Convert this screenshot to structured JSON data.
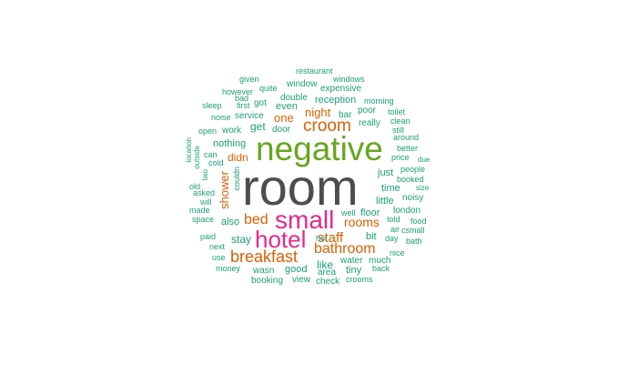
{
  "colors": {
    "teal": "#1b9e77",
    "orange": "#d95f02",
    "magenta": "#e7298a",
    "green": "#66a61e",
    "grey": "#4d4d4d"
  },
  "words": [
    {
      "text": "room",
      "color": "grey"
    },
    {
      "text": "negative",
      "color": "green"
    },
    {
      "text": "small",
      "color": "magenta"
    },
    {
      "text": "hotel",
      "color": "magenta"
    },
    {
      "text": "croom",
      "color": "orange"
    },
    {
      "text": "breakfast",
      "color": "orange"
    },
    {
      "text": "bathroom",
      "color": "orange"
    },
    {
      "text": "bed",
      "color": "orange"
    },
    {
      "text": "staff",
      "color": "orange"
    },
    {
      "text": "rooms",
      "color": "orange"
    },
    {
      "text": "shower",
      "color": "orange"
    },
    {
      "text": "night",
      "color": "orange"
    },
    {
      "text": "one",
      "color": "orange"
    },
    {
      "text": "didn",
      "color": "orange"
    },
    {
      "text": "restaurant",
      "color": "teal"
    },
    {
      "text": "given",
      "color": "teal"
    },
    {
      "text": "windows",
      "color": "teal"
    },
    {
      "text": "window",
      "color": "teal"
    },
    {
      "text": "however",
      "color": "teal"
    },
    {
      "text": "quite",
      "color": "teal"
    },
    {
      "text": "expensive",
      "color": "teal"
    },
    {
      "text": "bad",
      "color": "teal"
    },
    {
      "text": "double",
      "color": "teal"
    },
    {
      "text": "sleep",
      "color": "teal"
    },
    {
      "text": "first",
      "color": "teal"
    },
    {
      "text": "got",
      "color": "teal"
    },
    {
      "text": "reception",
      "color": "teal"
    },
    {
      "text": "morning",
      "color": "teal"
    },
    {
      "text": "even",
      "color": "teal"
    },
    {
      "text": "poor",
      "color": "teal"
    },
    {
      "text": "toilet",
      "color": "teal"
    },
    {
      "text": "noise",
      "color": "teal"
    },
    {
      "text": "service",
      "color": "teal"
    },
    {
      "text": "bar",
      "color": "teal"
    },
    {
      "text": "clean",
      "color": "teal"
    },
    {
      "text": "open",
      "color": "teal"
    },
    {
      "text": "work",
      "color": "teal"
    },
    {
      "text": "get",
      "color": "teal"
    },
    {
      "text": "door",
      "color": "teal"
    },
    {
      "text": "really",
      "color": "teal"
    },
    {
      "text": "still",
      "color": "teal"
    },
    {
      "text": "around",
      "color": "teal"
    },
    {
      "text": "nothing",
      "color": "teal"
    },
    {
      "text": "location",
      "color": "teal"
    },
    {
      "text": "better",
      "color": "teal"
    },
    {
      "text": "can",
      "color": "teal"
    },
    {
      "text": "outside",
      "color": "teal"
    },
    {
      "text": "price",
      "color": "teal"
    },
    {
      "text": "due",
      "color": "teal"
    },
    {
      "text": "cold",
      "color": "teal"
    },
    {
      "text": "two",
      "color": "teal"
    },
    {
      "text": "just",
      "color": "teal"
    },
    {
      "text": "people",
      "color": "teal"
    },
    {
      "text": "couldn",
      "color": "teal"
    },
    {
      "text": "booked",
      "color": "teal"
    },
    {
      "text": "old",
      "color": "teal"
    },
    {
      "text": "time",
      "color": "teal"
    },
    {
      "text": "size",
      "color": "teal"
    },
    {
      "text": "asked",
      "color": "teal"
    },
    {
      "text": "little",
      "color": "teal"
    },
    {
      "text": "noisy",
      "color": "teal"
    },
    {
      "text": "will",
      "color": "teal"
    },
    {
      "text": "made",
      "color": "teal"
    },
    {
      "text": "london",
      "color": "teal"
    },
    {
      "text": "well",
      "color": "teal"
    },
    {
      "text": "floor",
      "color": "teal"
    },
    {
      "text": "space",
      "color": "teal"
    },
    {
      "text": "told",
      "color": "teal"
    },
    {
      "text": "food",
      "color": "teal"
    },
    {
      "text": "also",
      "color": "teal"
    },
    {
      "text": "air",
      "color": "teal"
    },
    {
      "text": "csmall",
      "color": "teal"
    },
    {
      "text": "paid",
      "color": "teal"
    },
    {
      "text": "stay",
      "color": "teal"
    },
    {
      "text": "hot",
      "color": "teal"
    },
    {
      "text": "bit",
      "color": "teal"
    },
    {
      "text": "day",
      "color": "teal"
    },
    {
      "text": "bath",
      "color": "teal"
    },
    {
      "text": "next",
      "color": "teal"
    },
    {
      "text": "nice",
      "color": "teal"
    },
    {
      "text": "use",
      "color": "teal"
    },
    {
      "text": "water",
      "color": "teal"
    },
    {
      "text": "much",
      "color": "teal"
    },
    {
      "text": "like",
      "color": "teal"
    },
    {
      "text": "money",
      "color": "teal"
    },
    {
      "text": "wasn",
      "color": "teal"
    },
    {
      "text": "good",
      "color": "teal"
    },
    {
      "text": "area",
      "color": "teal"
    },
    {
      "text": "tiny",
      "color": "teal"
    },
    {
      "text": "back",
      "color": "teal"
    },
    {
      "text": "booking",
      "color": "teal"
    },
    {
      "text": "view",
      "color": "teal"
    },
    {
      "text": "check",
      "color": "teal"
    },
    {
      "text": "crooms",
      "color": "teal"
    }
  ]
}
